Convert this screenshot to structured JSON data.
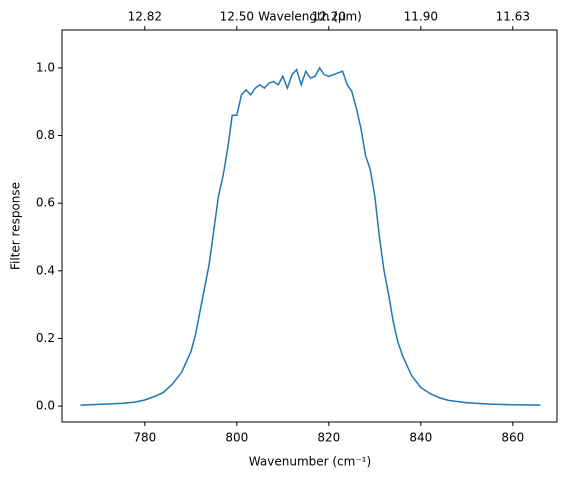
{
  "chart_data": {
    "type": "line",
    "xlabel": "Wavenumber (cm⁻¹)",
    "ylabel": "Filter response",
    "x2label": "Wavelength (μm)",
    "xlim": [
      762,
      869.6
    ],
    "ylim": [
      -0.047,
      1.112
    ],
    "xticks": [
      780,
      800,
      820,
      840,
      860
    ],
    "x2ticks": [
      {
        "value": 780,
        "label": "12.82"
      },
      {
        "value": 800,
        "label": "12.50"
      },
      {
        "value": 820,
        "label": "12.20"
      },
      {
        "value": 840,
        "label": "11.90"
      },
      {
        "value": 860,
        "label": "11.63"
      }
    ],
    "yticks": [
      {
        "value": 0,
        "label": "0.0"
      },
      0.2,
      0.4,
      0.6,
      0.8,
      {
        "value": 1,
        "label": "1.0"
      }
    ],
    "series": [
      {
        "color": "#1f77b4",
        "x": [
          766,
          770,
          775,
          778,
          780,
          782,
          784,
          786,
          788,
          789,
          790,
          791,
          792,
          793,
          794,
          795,
          796,
          797,
          798,
          799,
          800,
          801,
          802,
          803,
          804,
          805,
          806,
          807,
          808,
          809,
          810,
          811,
          812,
          813,
          814,
          815,
          816,
          817,
          818,
          819,
          820,
          821,
          822,
          823,
          824,
          825,
          826,
          827,
          828,
          829,
          830,
          831,
          832,
          833,
          834,
          835,
          836,
          837,
          838,
          840,
          842,
          844,
          846,
          850,
          855,
          860,
          866
        ],
        "values": [
          0.003,
          0.005,
          0.008,
          0.012,
          0.018,
          0.028,
          0.04,
          0.065,
          0.1,
          0.13,
          0.16,
          0.21,
          0.28,
          0.35,
          0.42,
          0.52,
          0.62,
          0.68,
          0.76,
          0.86,
          0.86,
          0.92,
          0.935,
          0.92,
          0.94,
          0.95,
          0.94,
          0.955,
          0.96,
          0.95,
          0.975,
          0.94,
          0.98,
          0.995,
          0.95,
          0.99,
          0.97,
          0.975,
          1.0,
          0.98,
          0.975,
          0.98,
          0.985,
          0.99,
          0.95,
          0.93,
          0.88,
          0.82,
          0.74,
          0.7,
          0.62,
          0.5,
          0.4,
          0.33,
          0.25,
          0.19,
          0.15,
          0.12,
          0.09,
          0.055,
          0.037,
          0.025,
          0.017,
          0.01,
          0.006,
          0.004,
          0.003
        ]
      }
    ]
  }
}
